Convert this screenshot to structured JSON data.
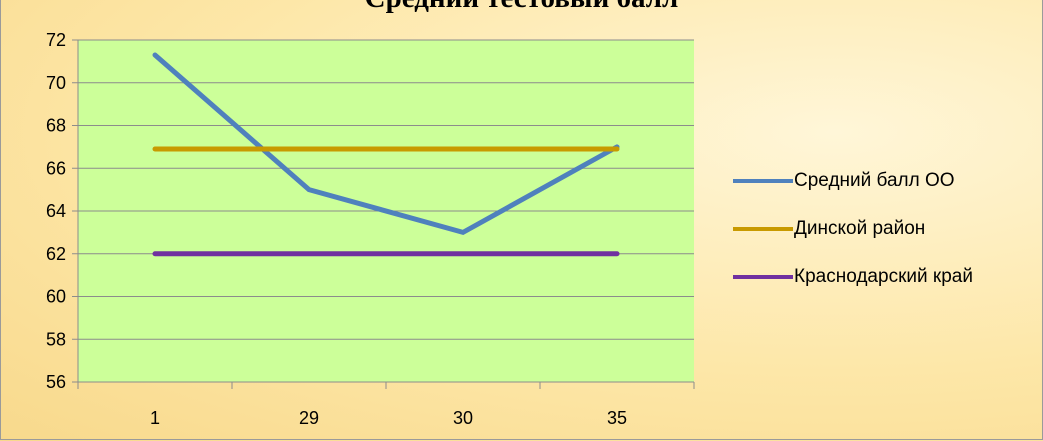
{
  "chart_data": {
    "type": "line",
    "title": "Средний тестовый балл",
    "categories": [
      "1",
      "29",
      "30",
      "35"
    ],
    "ylim": [
      56,
      72
    ],
    "yticks": [
      56,
      58,
      60,
      62,
      64,
      66,
      68,
      70,
      72
    ],
    "grid": true,
    "legend_position": "right",
    "plot_background": "#ccff99",
    "series": [
      {
        "name": "Средний балл ОО",
        "values": [
          71.3,
          65,
          63,
          67
        ],
        "color": "#4f81bd"
      },
      {
        "name": "Динской район",
        "values": [
          66.9,
          66.9,
          66.9,
          66.9
        ],
        "color": "#c89a00"
      },
      {
        "name": "Краснодарский край",
        "values": [
          62,
          62,
          62,
          62
        ],
        "color": "#7030a0"
      }
    ]
  }
}
